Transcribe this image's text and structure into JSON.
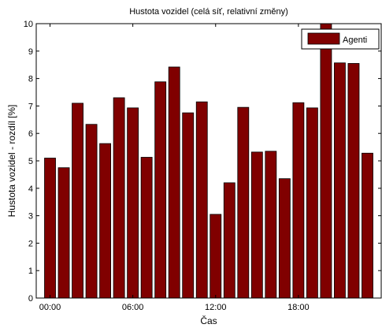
{
  "chart_data": {
    "type": "bar",
    "title": "Hustota vozidel (celá síť, relativní změny)",
    "xlabel": "Čas",
    "ylabel": "Hustota vozidel  - rozdíl [%]",
    "x": [
      0,
      1,
      2,
      3,
      4,
      5,
      6,
      7,
      8,
      9,
      10,
      11,
      12,
      13,
      14,
      15,
      16,
      17,
      18,
      19,
      20,
      21,
      22,
      23
    ],
    "x_tick_labels": [
      {
        "x": 0,
        "label": "00:00"
      },
      {
        "x": 6,
        "label": "06:00"
      },
      {
        "x": 12,
        "label": "12:00"
      },
      {
        "x": 18,
        "label": "18:00"
      }
    ],
    "xlim": [
      -1,
      24
    ],
    "ylim": [
      0,
      10
    ],
    "yticks": [
      0,
      1,
      2,
      3,
      4,
      5,
      6,
      7,
      8,
      9,
      10
    ],
    "series": [
      {
        "name": "Agenti",
        "color": "#800000",
        "values": [
          5.1,
          4.75,
          7.1,
          6.33,
          5.63,
          7.3,
          6.93,
          5.13,
          7.88,
          8.42,
          6.75,
          7.15,
          3.05,
          4.2,
          6.95,
          5.32,
          5.35,
          4.35,
          7.12,
          6.93,
          10.0,
          8.57,
          8.55,
          5.28
        ]
      }
    ],
    "legend": "top-right",
    "grid": false
  }
}
